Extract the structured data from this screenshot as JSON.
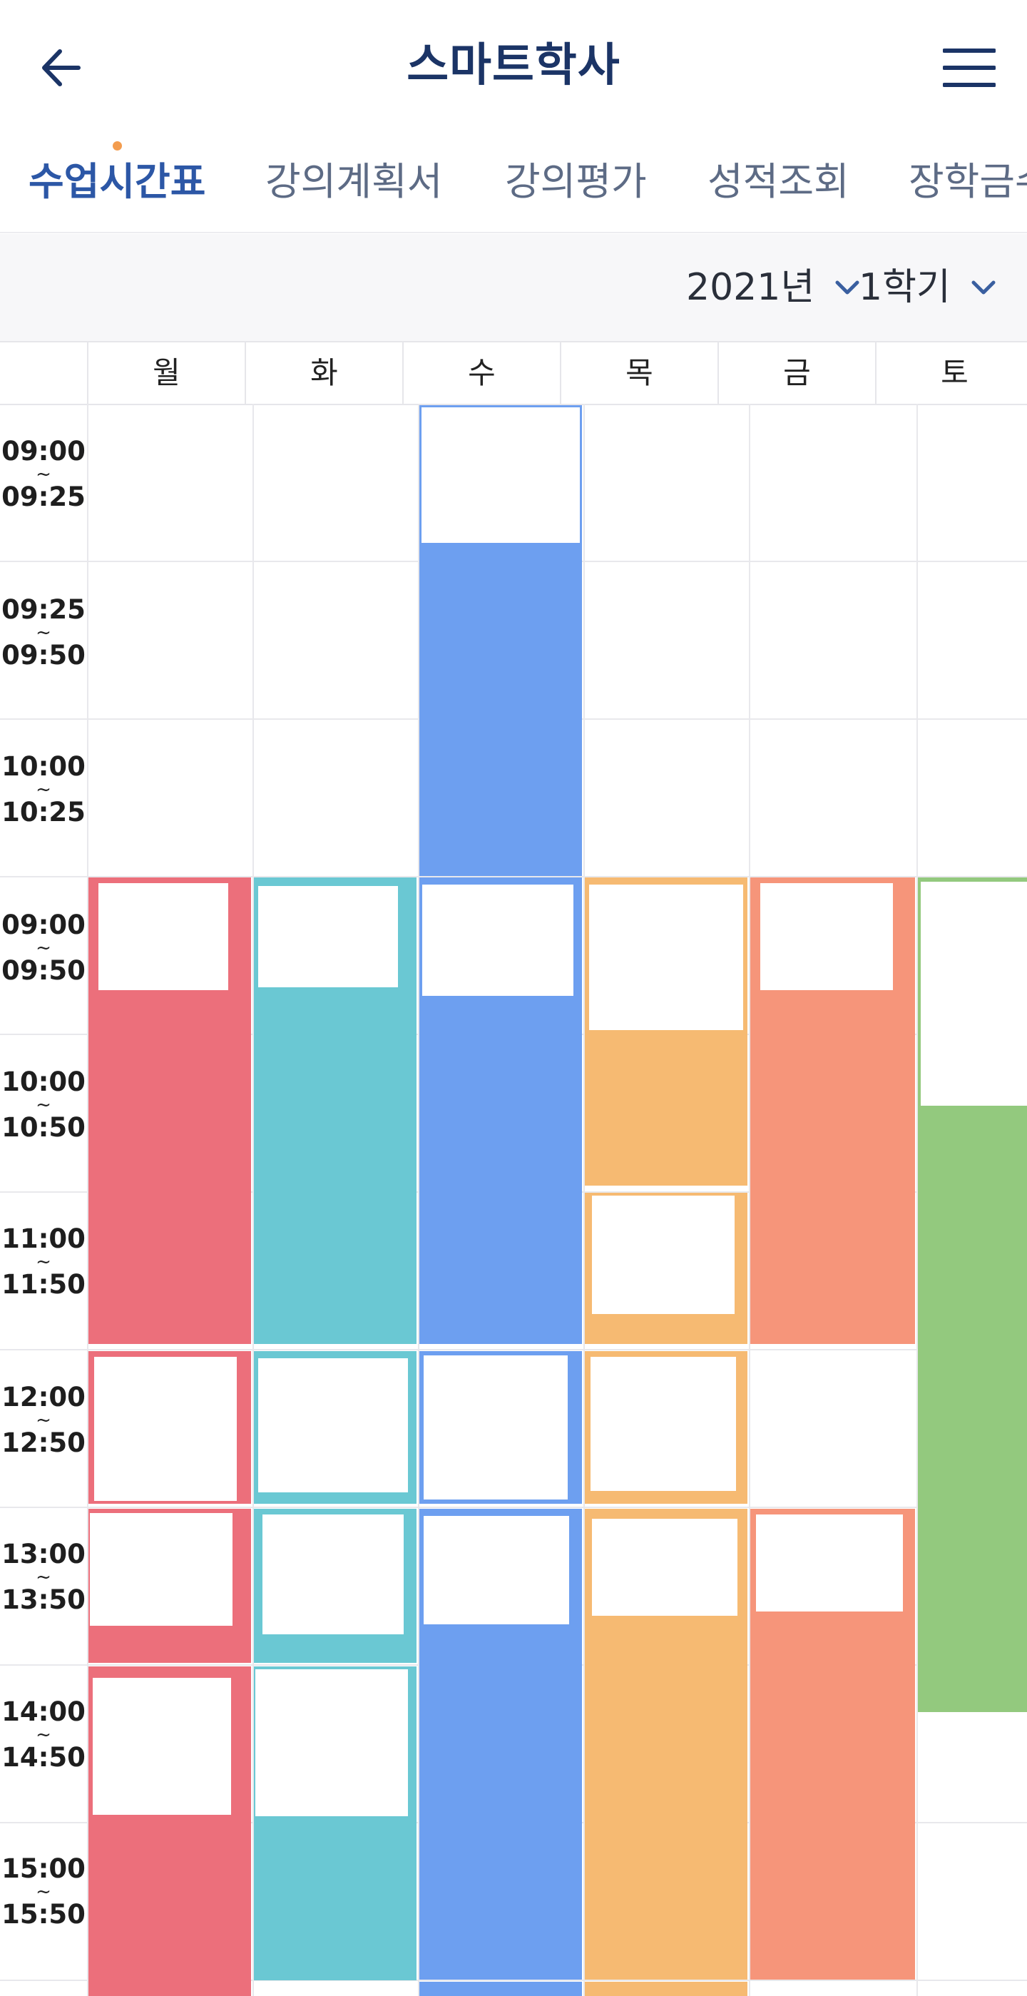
{
  "header": {
    "title": "스마트학사",
    "back_icon": "back-arrow-icon",
    "menu_icon": "hamburger-menu-icon"
  },
  "tabs": [
    {
      "label": "수업시간표",
      "active": true
    },
    {
      "label": "강의계획서",
      "active": false
    },
    {
      "label": "강의평가",
      "active": false
    },
    {
      "label": "성적조회",
      "active": false
    },
    {
      "label": "장학금수",
      "active": false
    }
  ],
  "filters": {
    "year": "2021년",
    "semester": "1학기"
  },
  "days": [
    "월",
    "화",
    "수",
    "목",
    "금",
    "토"
  ],
  "time_slots": [
    {
      "start": "09:00",
      "end": "09:25"
    },
    {
      "start": "09:25",
      "end": "09:50"
    },
    {
      "start": "10:00",
      "end": "10:25"
    },
    {
      "start": "09:00",
      "end": "09:50"
    },
    {
      "start": "10:00",
      "end": "10:50"
    },
    {
      "start": "11:00",
      "end": "11:50"
    },
    {
      "start": "12:00",
      "end": "12:50"
    },
    {
      "start": "13:00",
      "end": "13:50"
    },
    {
      "start": "14:00",
      "end": "14:50"
    },
    {
      "start": "15:00",
      "end": "15:50"
    }
  ],
  "tilde": "~",
  "colors": {
    "title": "#1b3466",
    "active_tab": "#2c57a6",
    "red": "#ec6f7b",
    "teal": "#6ac8d3",
    "blue": "#6d9ff0",
    "orange": "#f6ba72",
    "salmon": "#f6957a",
    "green": "#93c97e"
  }
}
